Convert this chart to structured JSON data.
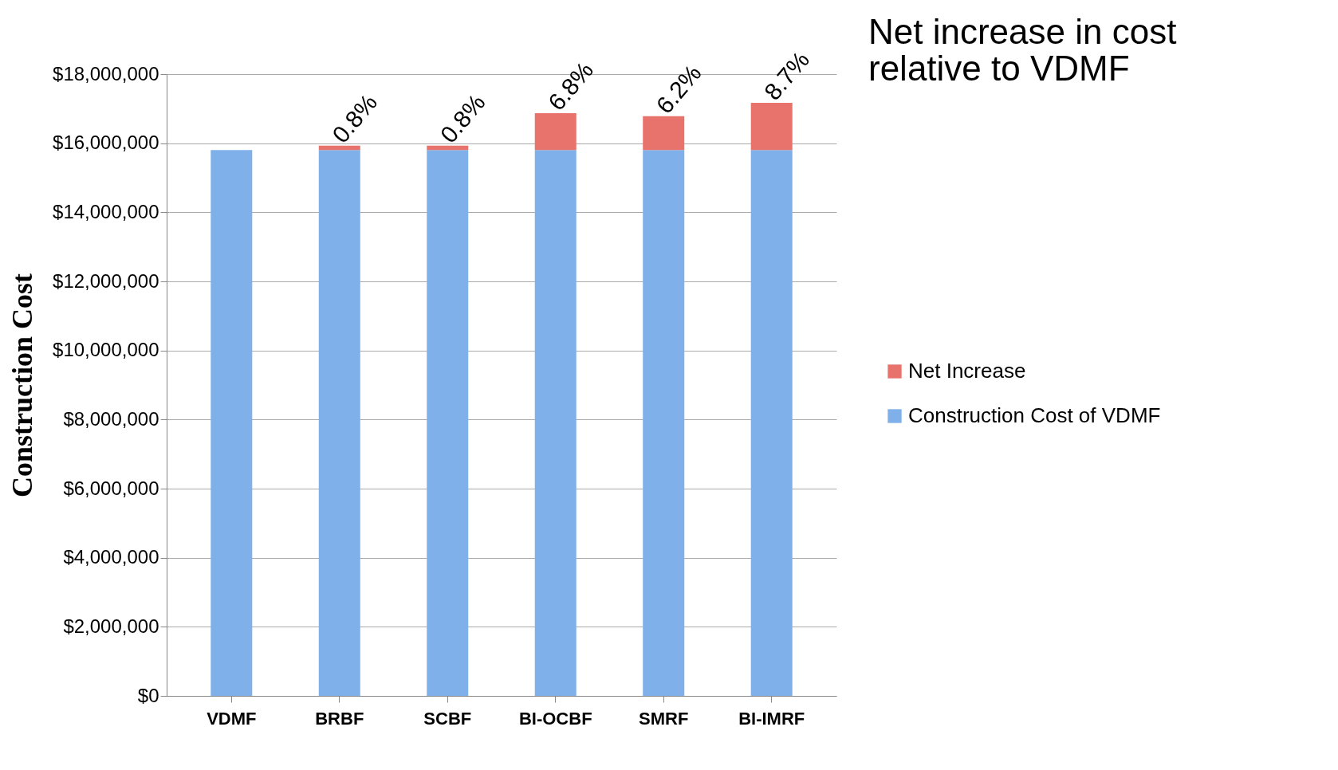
{
  "chart_data": {
    "type": "bar",
    "title": "Net increase in cost relative to VDMF",
    "ylabel": "Construction Cost",
    "categories": [
      "VDMF",
      "BRBF",
      "SCBF",
      "BI-OCBF",
      "SMRF",
      "BI-IMRF"
    ],
    "stacked": true,
    "series": [
      {
        "name": "Construction Cost of VDMF",
        "color": "#7fb0ea",
        "values": [
          15800000,
          15800000,
          15800000,
          15800000,
          15800000,
          15800000
        ]
      },
      {
        "name": "Net Increase",
        "color": "#e8736c",
        "values": [
          0,
          130000,
          130000,
          1070000,
          980000,
          1370000
        ]
      }
    ],
    "annotations": [
      {
        "text": "0.8%",
        "x": "BRBF",
        "y": 15930000
      },
      {
        "text": "0.8%",
        "x": "SCBF",
        "y": 15930000
      },
      {
        "text": "6.8%",
        "x": "BI-OCBF",
        "y": 16870000
      },
      {
        "text": "6.2%",
        "x": "SMRF",
        "y": 16780000
      },
      {
        "text": "8.7%",
        "x": "BI-IMRF",
        "y": 17170000
      }
    ],
    "ylim": [
      0,
      18000000
    ],
    "yticks": [
      {
        "value": 0,
        "label": "$0"
      },
      {
        "value": 2000000,
        "label": "$2,000,000"
      },
      {
        "value": 4000000,
        "label": "$4,000,000"
      },
      {
        "value": 6000000,
        "label": "$6,000,000"
      },
      {
        "value": 8000000,
        "label": "$8,000,000"
      },
      {
        "value": 10000000,
        "label": "$10,000,000"
      },
      {
        "value": 12000000,
        "label": "$12,000,000"
      },
      {
        "value": 14000000,
        "label": "$14,000,000"
      },
      {
        "value": 16000000,
        "label": "$16,000,000"
      },
      {
        "value": 18000000,
        "label": "$18,000,000"
      }
    ],
    "grid": "y",
    "legend": "right"
  }
}
